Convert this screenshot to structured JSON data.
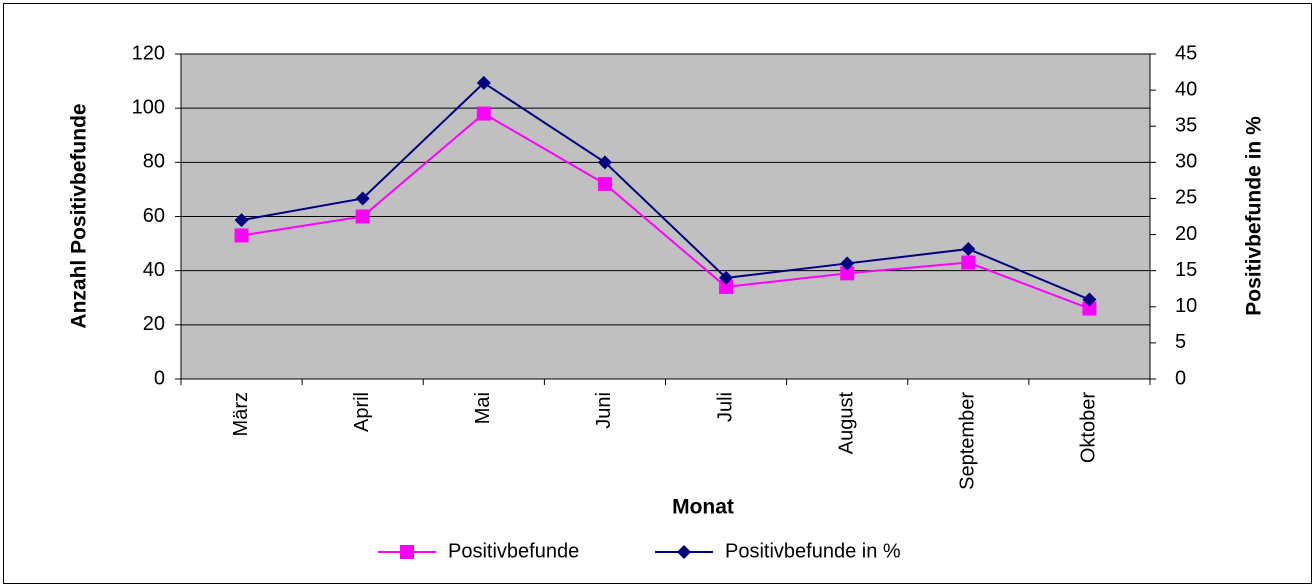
{
  "chart_data": {
    "type": "line",
    "x_label": "Monat",
    "y_label": "Anzahl Positivbefunde",
    "y2_label": "Positivbefunde in %",
    "categories": [
      "März",
      "April",
      "Mai",
      "Juni",
      "Juli",
      "August",
      "September",
      "Oktober"
    ],
    "series": [
      {
        "name": "Positivbefunde",
        "color": "#ff00ff",
        "marker": "square",
        "values": [
          53,
          60,
          98,
          72,
          34,
          39,
          43,
          26
        ]
      },
      {
        "name": "Positivbefunde in %",
        "color": "#000080",
        "marker": "diamond",
        "axis": "y2",
        "values": [
          22,
          25,
          41,
          30,
          14,
          16,
          18,
          11
        ]
      }
    ],
    "ylim": [
      0,
      120
    ],
    "yticks": [
      0,
      20,
      40,
      60,
      80,
      100,
      120
    ],
    "y2lim": [
      0,
      45
    ],
    "y2ticks": [
      0,
      5,
      10,
      15,
      20,
      25,
      30,
      35,
      40,
      45
    ],
    "grid": true,
    "legend": "bottom"
  }
}
